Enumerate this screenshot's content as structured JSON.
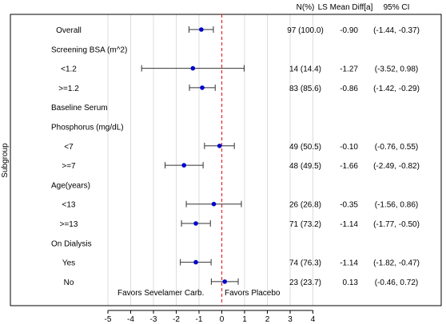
{
  "chart_data": {
    "type": "forest",
    "title": "",
    "ylabel": "Subgroup",
    "xlabel": "",
    "xlim": [
      -5,
      4
    ],
    "x_ticks": [
      -5,
      -4,
      -3,
      -2,
      -1,
      0,
      1,
      2,
      3,
      4
    ],
    "reference_line": 0,
    "grid": "vertical",
    "colors": {
      "point": "#0000cc",
      "ci_line": "#333333",
      "reference": "#e8262b",
      "grid": "#dddddd",
      "frame": "#000000"
    },
    "column_headers": [
      "N(%)",
      "LS Mean Diff[a]",
      "95% CI"
    ],
    "favors_left": "Favors Sevelamer Carb.",
    "favors_right": "Favors Placebo",
    "rows": [
      {
        "label": "Overall",
        "indent": true,
        "n": "97 (100.0)",
        "diff": "-0.90",
        "ci_text": "(-1.44, -0.37)",
        "estimate": -0.9,
        "lower": -1.44,
        "upper": -0.37
      },
      {
        "label": "Screening BSA (m^2)",
        "indent": false
      },
      {
        "label": "<1.2",
        "indent": true,
        "n": "14 (14.4)",
        "diff": "-1.27",
        "ci_text": "(-3.52, 0.98)",
        "estimate": -1.27,
        "lower": -3.52,
        "upper": 0.98
      },
      {
        "label": ">=1.2",
        "indent": true,
        "n": "83 (85.6)",
        "diff": "-0.86",
        "ci_text": "(-1.42, -0.29)",
        "estimate": -0.86,
        "lower": -1.42,
        "upper": -0.29
      },
      {
        "label": "Baseline Serum",
        "indent": false
      },
      {
        "label": "Phosphorus (mg/dL)",
        "indent": false
      },
      {
        "label": "<7",
        "indent": true,
        "n": "49 (50.5)",
        "diff": "-0.10",
        "ci_text": "(-0.76, 0.55)",
        "estimate": -0.1,
        "lower": -0.76,
        "upper": 0.55
      },
      {
        "label": ">=7",
        "indent": true,
        "n": "48 (49.5)",
        "diff": "-1.66",
        "ci_text": "(-2.49, -0.82)",
        "estimate": -1.66,
        "lower": -2.49,
        "upper": -0.82
      },
      {
        "label": "Age(years)",
        "indent": false
      },
      {
        "label": "<13",
        "indent": true,
        "n": "26 (26.8)",
        "diff": "-0.35",
        "ci_text": "(-1.56, 0.86)",
        "estimate": -0.35,
        "lower": -1.56,
        "upper": 0.86
      },
      {
        "label": ">=13",
        "indent": true,
        "n": "71 (73.2)",
        "diff": "-1.14",
        "ci_text": "(-1.77, -0.50)",
        "estimate": -1.14,
        "lower": -1.77,
        "upper": -0.5
      },
      {
        "label": "On Dialysis",
        "indent": false
      },
      {
        "label": "Yes",
        "indent": true,
        "n": "74 (76.3)",
        "diff": "-1.14",
        "ci_text": "(-1.82, -0.47)",
        "estimate": -1.14,
        "lower": -1.82,
        "upper": -0.47
      },
      {
        "label": "No",
        "indent": true,
        "n": "23 (23.7)",
        "diff": "0.13",
        "ci_text": "(-0.46, 0.72)",
        "estimate": 0.13,
        "lower": -0.46,
        "upper": 0.72
      }
    ]
  }
}
